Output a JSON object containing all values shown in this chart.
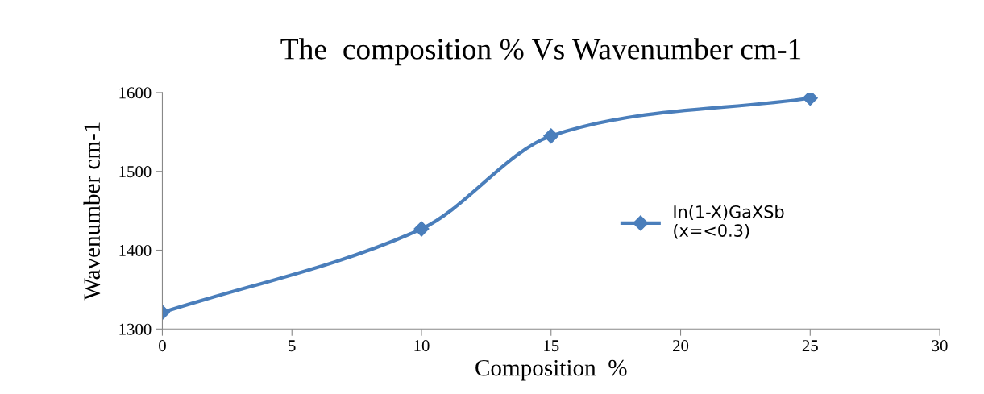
{
  "chart_data": {
    "type": "line",
    "title": "The  composition % Vs Wavenumber cm-1",
    "xlabel": "Composition  %",
    "ylabel": "Wavenumber cm-1",
    "x": [
      0,
      10,
      15,
      25
    ],
    "series": [
      {
        "name": "In(1-X)GaXSb\n(x=<0.3)",
        "color": "#4a7ebb",
        "values": [
          1321,
          1427,
          1545,
          1593
        ]
      }
    ],
    "xlim": [
      0,
      30
    ],
    "xticks": [
      0,
      5,
      10,
      15,
      20,
      25,
      30
    ],
    "ylim": [
      1300,
      1600
    ],
    "yticks": [
      1300,
      1400,
      1500,
      1600
    ],
    "grid": false,
    "legend": "center right",
    "marker": "diamond",
    "line_style": "solid"
  }
}
